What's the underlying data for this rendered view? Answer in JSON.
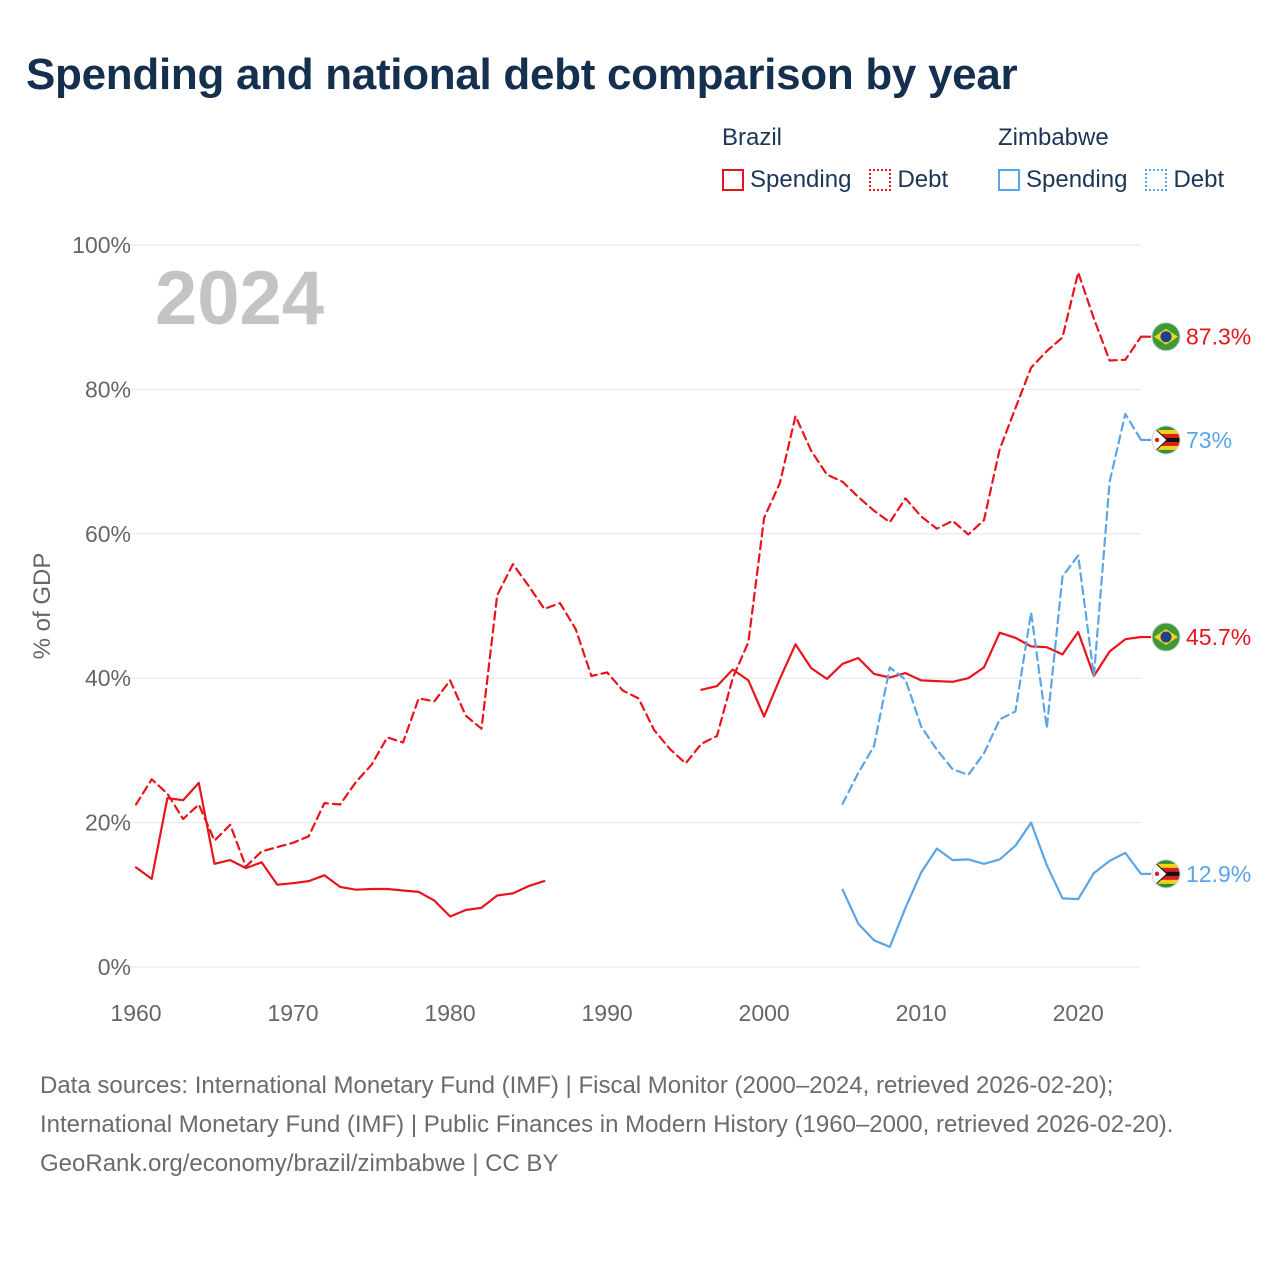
{
  "page": {
    "title": "Spending and national debt comparison by year"
  },
  "legend": {
    "groups": [
      {
        "name": "Brazil",
        "color": "#e8141c",
        "items": [
          {
            "label": "Spending",
            "style": "solid"
          },
          {
            "label": "Debt",
            "style": "dotted"
          }
        ]
      },
      {
        "name": "Zimbabwe",
        "color": "#5aa5e6",
        "items": [
          {
            "label": "Spending",
            "style": "solid"
          },
          {
            "label": "Debt",
            "style": "dotted"
          }
        ]
      }
    ]
  },
  "chart_data": {
    "type": "line",
    "year_label": "2024",
    "ylabel": "% of GDP",
    "xlabel": "",
    "xlim": [
      1960,
      2024
    ],
    "ylim": [
      0,
      100
    ],
    "x_ticks": [
      "1960",
      "1970",
      "1980",
      "1990",
      "2000",
      "2010",
      "2020"
    ],
    "y_ticks": [
      "0%",
      "20%",
      "40%",
      "60%",
      "80%",
      "100%"
    ],
    "grid": true,
    "series": [
      {
        "name": "Brazil Debt",
        "country": "Brazil",
        "kind": "Debt",
        "color": "#e8141c",
        "dash": true,
        "x": [
          1960,
          1961,
          1962,
          1963,
          1964,
          1965,
          1966,
          1967,
          1968,
          1969,
          1970,
          1971,
          1972,
          1973,
          1974,
          1975,
          1976,
          1977,
          1978,
          1979,
          1980,
          1981,
          1982,
          1983,
          1984,
          1985,
          1986,
          1987,
          1988,
          1989,
          1990,
          1991,
          1992,
          1993,
          1994,
          1995,
          1996,
          1997,
          1998,
          1999,
          2000,
          2001,
          2002,
          2003,
          2004,
          2005,
          2006,
          2007,
          2008,
          2009,
          2010,
          2011,
          2012,
          2013,
          2014,
          2015,
          2016,
          2017,
          2018,
          2019,
          2020,
          2021,
          2022,
          2023,
          2024
        ],
        "values": [
          22.5,
          26,
          24,
          20.5,
          22.5,
          17.5,
          19.7,
          13.9,
          16,
          16.6,
          17.2,
          18.1,
          22.7,
          22.5,
          25.6,
          28,
          31.8,
          31.1,
          37.2,
          36.8,
          39.7,
          34.8,
          33,
          51.5,
          55.8,
          52.8,
          49.6,
          50.4,
          46.8,
          40.3,
          40.8,
          38.3,
          37.2,
          32.8,
          30.2,
          28.2,
          30.9,
          32,
          40,
          45,
          62.2,
          67,
          76.3,
          71.5,
          68.2,
          67.2,
          65.1,
          63.2,
          61.6,
          64.9,
          62.4,
          60.7,
          61.8,
          59.9,
          61.9,
          71.7,
          77.4,
          83,
          85.3,
          87.2,
          96.2,
          89.8,
          84,
          84.1,
          87.3
        ],
        "end_label": "87.3%"
      },
      {
        "name": "Brazil Spending",
        "country": "Brazil",
        "kind": "Spending",
        "color": "#e8141c",
        "dash": false,
        "x": [
          1960,
          1961,
          1962,
          1963,
          1964,
          1965,
          1966,
          1967,
          1968,
          1969,
          1970,
          1971,
          1972,
          1973,
          1974,
          1975,
          1976,
          1977,
          1978,
          1979,
          1980,
          1981,
          1982,
          1983,
          1984,
          1985,
          1986,
          1987,
          1988,
          1989,
          1990,
          1991,
          1992,
          1993,
          1994,
          1995,
          1996,
          1997,
          1998,
          1999,
          2000,
          2001,
          2002,
          2003,
          2004,
          2005,
          2006,
          2007,
          2008,
          2009,
          2010,
          2011,
          2012,
          2013,
          2014,
          2015,
          2016,
          2017,
          2018,
          2019,
          2020,
          2021,
          2022,
          2023,
          2024
        ],
        "values": [
          13.8,
          12.2,
          23.4,
          23.1,
          25.5,
          14.3,
          14.8,
          13.7,
          14.5,
          11.4,
          11.6,
          11.9,
          12.7,
          11.1,
          10.7,
          10.8,
          10.8,
          10.6,
          10.4,
          9.2,
          7,
          7.9,
          8.2,
          9.9,
          10.2,
          11.2,
          11.9,
          null,
          null,
          null,
          null,
          null,
          null,
          null,
          null,
          null,
          38.4,
          38.9,
          41.2,
          39.7,
          34.7,
          39.9,
          44.7,
          41.4,
          39.9,
          42,
          42.8,
          40.6,
          40.1,
          40.7,
          39.7,
          39.6,
          39.5,
          40,
          41.5,
          46.3,
          45.6,
          44.4,
          44.3,
          43.3,
          46.4,
          40.3,
          43.7,
          45.4,
          45.7
        ],
        "end_label": "45.7%"
      },
      {
        "name": "Zimbabwe Debt",
        "country": "Zimbabwe",
        "kind": "Debt",
        "color": "#5aa5e6",
        "dash": true,
        "x": [
          2005,
          2006,
          2007,
          2008,
          2009,
          2010,
          2011,
          2012,
          2013,
          2014,
          2015,
          2016,
          2017,
          2018,
          2019,
          2020,
          2021,
          2022,
          2023,
          2024
        ],
        "values": [
          22.6,
          26.9,
          30.6,
          41.5,
          39.8,
          33.3,
          30.1,
          27.4,
          26.6,
          29.6,
          34.3,
          35.4,
          49.1,
          33.1,
          54.1,
          57,
          40.3,
          67.2,
          76.6,
          73
        ],
        "end_label": "73%"
      },
      {
        "name": "Zimbabwe Spending",
        "country": "Zimbabwe",
        "kind": "Spending",
        "color": "#5aa5e6",
        "dash": false,
        "x": [
          2005,
          2006,
          2007,
          2008,
          2009,
          2010,
          2011,
          2012,
          2013,
          2014,
          2015,
          2016,
          2017,
          2018,
          2019,
          2020,
          2021,
          2022,
          2023,
          2024
        ],
        "values": [
          10.7,
          6,
          3.7,
          2.8,
          8.2,
          13.1,
          16.4,
          14.8,
          14.9,
          14.3,
          14.9,
          16.8,
          20,
          14.1,
          9.5,
          9.4,
          13,
          14.7,
          15.8,
          12.9
        ],
        "end_label": "12.9%"
      }
    ]
  },
  "footer": {
    "sources": "Data sources: International Monetary Fund (IMF) | Fiscal Monitor (2000–2024, retrieved 2026-02-20); International Monetary Fund (IMF) | Public Finances in Modern History (1960–2000, retrieved 2026-02-20).",
    "credit": "GeoRank.org/economy/brazil/zimbabwe | CC BY"
  }
}
